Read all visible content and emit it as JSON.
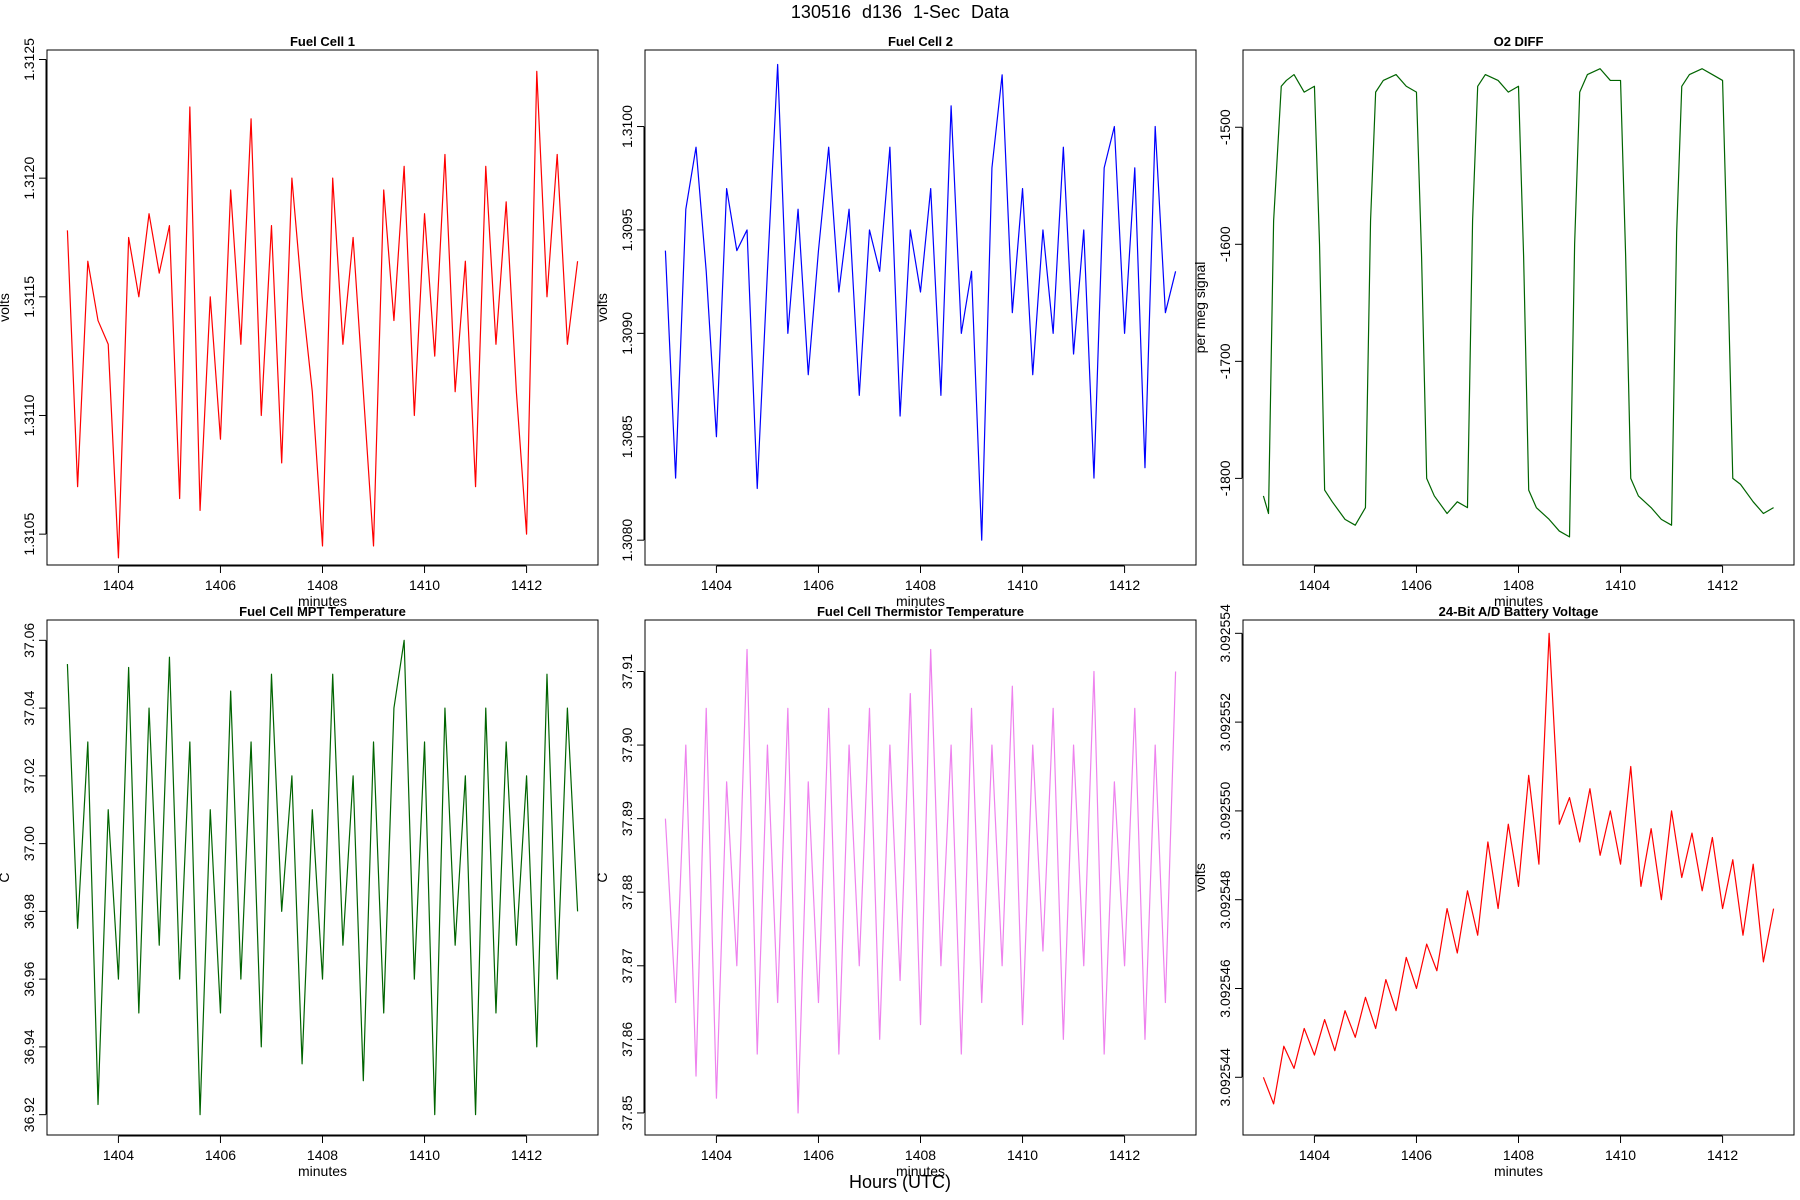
{
  "figure": {
    "title": "130516   d136   1-Sec Data",
    "xlabel": "Hours (UTC)"
  },
  "chart_data": [
    {
      "type": "line",
      "title": "Fuel Cell 1",
      "xlabel": "minutes",
      "ylabel": "volts",
      "color": "#ff0000",
      "xlim": [
        1402.6,
        1413.4
      ],
      "ylim": [
        1.31037,
        1.31254
      ],
      "xticks": [
        1404,
        1406,
        1408,
        1410,
        1412
      ],
      "yticks": [
        1.3105,
        1.311,
        1.3115,
        1.312,
        1.3125
      ],
      "ytick_labels": [
        "1.3105",
        "1.3110",
        "1.3115",
        "1.3120",
        "1.3125"
      ],
      "x": [
        1403.0,
        1403.2,
        1403.4,
        1403.6,
        1403.8,
        1404.0,
        1404.2,
        1404.4,
        1404.6,
        1404.8,
        1405.0,
        1405.2,
        1405.4,
        1405.6,
        1405.8,
        1406.0,
        1406.2,
        1406.4,
        1406.6,
        1406.8,
        1407.0,
        1407.2,
        1407.4,
        1407.6,
        1407.8,
        1408.0,
        1408.2,
        1408.4,
        1408.6,
        1408.8,
        1409.0,
        1409.2,
        1409.4,
        1409.6,
        1409.8,
        1410.0,
        1410.2,
        1410.4,
        1410.6,
        1410.8,
        1411.0,
        1411.2,
        1411.4,
        1411.6,
        1411.8,
        1412.0,
        1412.2,
        1412.4,
        1412.6,
        1412.8,
        1413.0
      ],
      "y": [
        1.31178,
        1.3107,
        1.31165,
        1.3114,
        1.3113,
        1.3104,
        1.31175,
        1.3115,
        1.31185,
        1.3116,
        1.3118,
        1.31065,
        1.3123,
        1.3106,
        1.3115,
        1.3109,
        1.31195,
        1.3113,
        1.31225,
        1.311,
        1.3118,
        1.3108,
        1.312,
        1.3115,
        1.3111,
        1.31045,
        1.312,
        1.3113,
        1.31175,
        1.3111,
        1.31045,
        1.31195,
        1.3114,
        1.31205,
        1.311,
        1.31185,
        1.31125,
        1.3121,
        1.3111,
        1.31165,
        1.3107,
        1.31205,
        1.3113,
        1.3119,
        1.3111,
        1.3105,
        1.31245,
        1.3115,
        1.3121,
        1.3113,
        1.31165
      ]
    },
    {
      "type": "line",
      "title": "Fuel Cell 2",
      "xlabel": "minutes",
      "ylabel": "volts",
      "color": "#0000ff",
      "xlim": [
        1402.6,
        1413.4
      ],
      "ylim": [
        1.30788,
        1.31037
      ],
      "xticks": [
        1404,
        1406,
        1408,
        1410,
        1412
      ],
      "yticks": [
        1.308,
        1.3085,
        1.309,
        1.3095,
        1.31
      ],
      "ytick_labels": [
        "1.3080",
        "1.3085",
        "1.3090",
        "1.3095",
        "1.3100"
      ],
      "x": [
        1403.0,
        1403.2,
        1403.4,
        1403.6,
        1403.8,
        1404.0,
        1404.2,
        1404.4,
        1404.6,
        1404.8,
        1405.0,
        1405.2,
        1405.4,
        1405.6,
        1405.8,
        1406.0,
        1406.2,
        1406.4,
        1406.6,
        1406.8,
        1407.0,
        1407.2,
        1407.4,
        1407.6,
        1407.8,
        1408.0,
        1408.2,
        1408.4,
        1408.6,
        1408.8,
        1409.0,
        1409.2,
        1409.4,
        1409.6,
        1409.8,
        1410.0,
        1410.2,
        1410.4,
        1410.6,
        1410.8,
        1411.0,
        1411.2,
        1411.4,
        1411.6,
        1411.8,
        1412.0,
        1412.2,
        1412.4,
        1412.6,
        1412.8,
        1413.0
      ],
      "y": [
        1.3094,
        1.3083,
        1.3096,
        1.3099,
        1.3093,
        1.3085,
        1.3097,
        1.3094,
        1.3095,
        1.30825,
        1.3093,
        1.3103,
        1.309,
        1.3096,
        1.3088,
        1.3094,
        1.3099,
        1.3092,
        1.3096,
        1.3087,
        1.3095,
        1.3093,
        1.3099,
        1.3086,
        1.3095,
        1.3092,
        1.3097,
        1.3087,
        1.3101,
        1.309,
        1.3093,
        1.308,
        1.3098,
        1.31025,
        1.3091,
        1.3097,
        1.3088,
        1.3095,
        1.309,
        1.3099,
        1.3089,
        1.3095,
        1.3083,
        1.3098,
        1.31,
        1.309,
        1.3098,
        1.30835,
        1.31,
        1.3091,
        1.3093
      ]
    },
    {
      "type": "line",
      "title": "O2 DIFF",
      "xlabel": "minutes",
      "ylabel": "per meg signal",
      "color": "#006400",
      "xlim": [
        1402.6,
        1413.4
      ],
      "ylim": [
        -1874,
        -1434
      ],
      "xticks": [
        1404,
        1406,
        1408,
        1410,
        1412
      ],
      "yticks": [
        -1800,
        -1700,
        -1600,
        -1500
      ],
      "ytick_labels": [
        "-1800",
        "-1700",
        "-1600",
        "-1500"
      ],
      "x": [
        1403.0,
        1403.1,
        1403.2,
        1403.35,
        1403.45,
        1403.6,
        1403.8,
        1404.0,
        1404.1,
        1404.2,
        1404.35,
        1404.6,
        1404.8,
        1405.0,
        1405.1,
        1405.2,
        1405.35,
        1405.6,
        1405.8,
        1406.0,
        1406.1,
        1406.2,
        1406.35,
        1406.6,
        1406.8,
        1407.0,
        1407.1,
        1407.2,
        1407.35,
        1407.6,
        1407.8,
        1408.0,
        1408.1,
        1408.2,
        1408.35,
        1408.6,
        1408.8,
        1409.0,
        1409.1,
        1409.2,
        1409.35,
        1409.6,
        1409.8,
        1410.0,
        1410.1,
        1410.2,
        1410.35,
        1410.6,
        1410.8,
        1411.0,
        1411.1,
        1411.2,
        1411.35,
        1411.6,
        1411.8,
        1412.0,
        1412.1,
        1412.2,
        1412.35,
        1412.6,
        1412.8,
        1413.0
      ],
      "y": [
        -1815,
        -1830,
        -1580,
        -1465,
        -1460,
        -1455,
        -1470,
        -1465,
        -1600,
        -1810,
        -1820,
        -1835,
        -1840,
        -1825,
        -1580,
        -1470,
        -1460,
        -1455,
        -1465,
        -1470,
        -1610,
        -1800,
        -1815,
        -1830,
        -1820,
        -1825,
        -1580,
        -1465,
        -1455,
        -1460,
        -1470,
        -1465,
        -1610,
        -1810,
        -1825,
        -1835,
        -1845,
        -1850,
        -1600,
        -1470,
        -1455,
        -1450,
        -1460,
        -1460,
        -1610,
        -1800,
        -1815,
        -1825,
        -1835,
        -1840,
        -1590,
        -1465,
        -1455,
        -1450,
        -1455,
        -1460,
        -1620,
        -1800,
        -1805,
        -1820,
        -1830,
        -1825
      ]
    },
    {
      "type": "line",
      "title": "Fuel Cell MPT Temperature",
      "xlabel": "minutes",
      "ylabel": "C",
      "color": "#006400",
      "xlim": [
        1402.6,
        1413.4
      ],
      "ylim": [
        36.914,
        37.066
      ],
      "xticks": [
        1404,
        1406,
        1408,
        1410,
        1412
      ],
      "yticks": [
        36.92,
        36.94,
        36.96,
        36.98,
        37.0,
        37.02,
        37.04,
        37.06
      ],
      "ytick_labels": [
        "36.92",
        "36.94",
        "36.96",
        "36.98",
        "37.00",
        "37.02",
        "37.04",
        "37.06"
      ],
      "x": [
        1403.0,
        1403.2,
        1403.4,
        1403.6,
        1403.8,
        1404.0,
        1404.2,
        1404.4,
        1404.6,
        1404.8,
        1405.0,
        1405.2,
        1405.4,
        1405.6,
        1405.8,
        1406.0,
        1406.2,
        1406.4,
        1406.6,
        1406.8,
        1407.0,
        1407.2,
        1407.4,
        1407.6,
        1407.8,
        1408.0,
        1408.2,
        1408.4,
        1408.6,
        1408.8,
        1409.0,
        1409.2,
        1409.4,
        1409.6,
        1409.8,
        1410.0,
        1410.2,
        1410.4,
        1410.6,
        1410.8,
        1411.0,
        1411.2,
        1411.4,
        1411.6,
        1411.8,
        1412.0,
        1412.2,
        1412.4,
        1412.6,
        1412.8,
        1413.0
      ],
      "y": [
        37.053,
        36.975,
        37.03,
        36.923,
        37.01,
        36.96,
        37.052,
        36.95,
        37.04,
        36.97,
        37.055,
        36.96,
        37.03,
        36.92,
        37.01,
        36.95,
        37.045,
        36.96,
        37.03,
        36.94,
        37.05,
        36.98,
        37.02,
        36.935,
        37.01,
        36.96,
        37.05,
        36.97,
        37.02,
        36.93,
        37.03,
        36.95,
        37.04,
        37.06,
        36.96,
        37.03,
        36.92,
        37.04,
        36.97,
        37.02,
        36.92,
        37.04,
        36.95,
        37.03,
        36.97,
        37.02,
        36.94,
        37.05,
        36.96,
        37.04,
        36.98
      ]
    },
    {
      "type": "line",
      "title": "Fuel Cell Thermistor Temperature",
      "xlabel": "minutes",
      "ylabel": "C",
      "color": "#ee82ee",
      "xlim": [
        1402.6,
        1413.4
      ],
      "ylim": [
        37.847,
        37.917
      ],
      "xticks": [
        1404,
        1406,
        1408,
        1410,
        1412
      ],
      "yticks": [
        37.85,
        37.86,
        37.87,
        37.88,
        37.89,
        37.9,
        37.91
      ],
      "ytick_labels": [
        "37.85",
        "37.86",
        "37.87",
        "37.88",
        "37.89",
        "37.90",
        "37.91"
      ],
      "x": [
        1403.0,
        1403.2,
        1403.4,
        1403.6,
        1403.8,
        1404.0,
        1404.2,
        1404.4,
        1404.6,
        1404.8,
        1405.0,
        1405.2,
        1405.4,
        1405.6,
        1405.8,
        1406.0,
        1406.2,
        1406.4,
        1406.6,
        1406.8,
        1407.0,
        1407.2,
        1407.4,
        1407.6,
        1407.8,
        1408.0,
        1408.2,
        1408.4,
        1408.6,
        1408.8,
        1409.0,
        1409.2,
        1409.4,
        1409.6,
        1409.8,
        1410.0,
        1410.2,
        1410.4,
        1410.6,
        1410.8,
        1411.0,
        1411.2,
        1411.4,
        1411.6,
        1411.8,
        1412.0,
        1412.2,
        1412.4,
        1412.6,
        1412.8,
        1413.0
      ],
      "y": [
        37.89,
        37.865,
        37.9,
        37.855,
        37.905,
        37.852,
        37.895,
        37.87,
        37.913,
        37.858,
        37.9,
        37.865,
        37.905,
        37.85,
        37.895,
        37.865,
        37.905,
        37.858,
        37.9,
        37.87,
        37.905,
        37.86,
        37.9,
        37.868,
        37.907,
        37.862,
        37.913,
        37.87,
        37.9,
        37.858,
        37.905,
        37.865,
        37.9,
        37.87,
        37.908,
        37.862,
        37.9,
        37.872,
        37.905,
        37.86,
        37.9,
        37.87,
        37.91,
        37.858,
        37.895,
        37.87,
        37.905,
        37.86,
        37.9,
        37.865,
        37.91
      ]
    },
    {
      "type": "line",
      "title": "24-Bit A/D Battery Voltage",
      "xlabel": "minutes",
      "ylabel": "volts",
      "color": "#ff0000",
      "xlim": [
        1402.6,
        1413.4
      ],
      "ylim": [
        3.0925427,
        3.0925543
      ],
      "xticks": [
        1404,
        1406,
        1408,
        1410,
        1412
      ],
      "yticks": [
        3.092544,
        3.092546,
        3.092548,
        3.09255,
        3.092552,
        3.092554
      ],
      "ytick_labels": [
        "3.092544",
        "3.092546",
        "3.092548",
        "3.092550",
        "3.092552",
        "3.092554"
      ],
      "x": [
        1403.0,
        1403.2,
        1403.4,
        1403.6,
        1403.8,
        1404.0,
        1404.2,
        1404.4,
        1404.6,
        1404.8,
        1405.0,
        1405.2,
        1405.4,
        1405.6,
        1405.8,
        1406.0,
        1406.2,
        1406.4,
        1406.6,
        1406.8,
        1407.0,
        1407.2,
        1407.4,
        1407.6,
        1407.8,
        1408.0,
        1408.2,
        1408.4,
        1408.6,
        1408.8,
        1409.0,
        1409.2,
        1409.4,
        1409.6,
        1409.8,
        1410.0,
        1410.2,
        1410.4,
        1410.6,
        1410.8,
        1411.0,
        1411.2,
        1411.4,
        1411.6,
        1411.8,
        1412.0,
        1412.2,
        1412.4,
        1412.6,
        1412.8,
        1413.0
      ],
      "y": [
        3.092544,
        3.0925434,
        3.0925447,
        3.0925442,
        3.0925451,
        3.0925445,
        3.0925453,
        3.0925446,
        3.0925455,
        3.0925449,
        3.0925458,
        3.0925451,
        3.0925462,
        3.0925455,
        3.0925467,
        3.092546,
        3.092547,
        3.0925464,
        3.0925478,
        3.0925468,
        3.0925482,
        3.0925472,
        3.0925493,
        3.0925478,
        3.0925497,
        3.0925483,
        3.0925508,
        3.0925488,
        3.092554,
        3.0925497,
        3.0925503,
        3.0925493,
        3.0925505,
        3.092549,
        3.09255,
        3.0925488,
        3.092551,
        3.0925483,
        3.0925496,
        3.092548,
        3.09255,
        3.0925485,
        3.0925495,
        3.0925482,
        3.0925494,
        3.0925478,
        3.0925489,
        3.0925472,
        3.0925488,
        3.0925466,
        3.0925478
      ]
    }
  ]
}
